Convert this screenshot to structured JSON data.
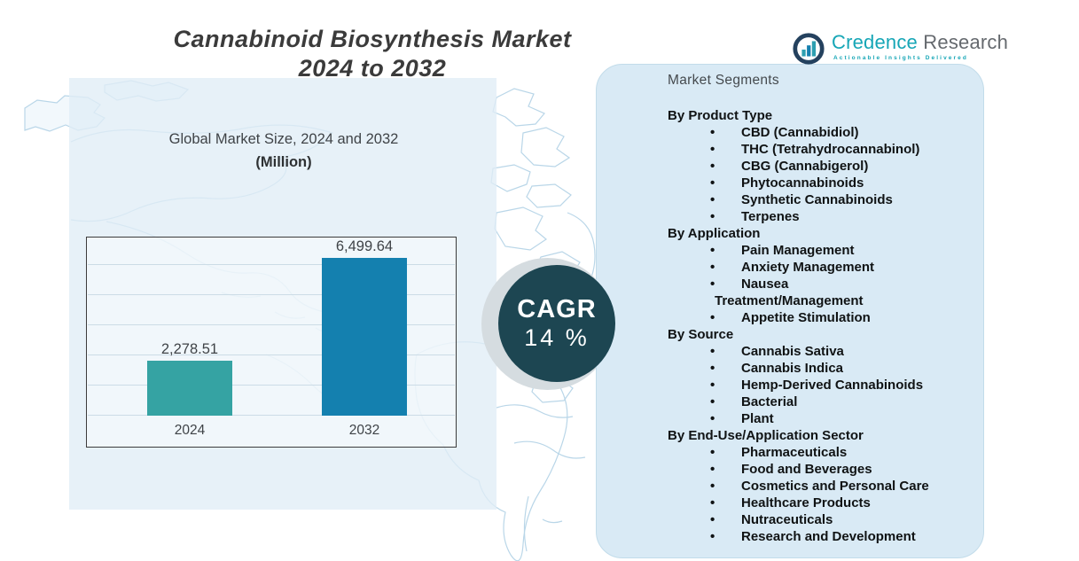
{
  "title": {
    "line1": "Cannabinoid Biosynthesis Market",
    "line2": "2024 to 2032"
  },
  "logo": {
    "brand_primary": "Credence",
    "brand_secondary": " Research",
    "tagline": "Actionable Insights Delivered",
    "icon": "bar-chart-icon",
    "brand_color": "#16a6b6",
    "secondary_color": "#65696e"
  },
  "chart_data": {
    "type": "bar",
    "title": "Global Market Size, 2024 and 2032",
    "subtitle": "(Million)",
    "categories": [
      "2024",
      "2032"
    ],
    "values": [
      2278.51,
      6499.64
    ],
    "value_labels": [
      "2,278.51",
      "6,499.64"
    ],
    "bar_colors": [
      "#35a3a3",
      "#1480af"
    ],
    "xlabel": "",
    "ylabel": "",
    "ylim": [
      0,
      7400
    ],
    "grid": true,
    "gridline_count": 6,
    "legend": "none"
  },
  "cagr": {
    "label": "CAGR",
    "value": "14 %",
    "circle_color": "#1d4652",
    "text_color": "#ffffff"
  },
  "segments_panel": {
    "header": "Market Segments",
    "panel_color": "#d9eaf5",
    "groups": [
      {
        "heading": "By Product Type",
        "items": [
          "CBD (Cannabidiol)",
          "THC (Tetrahydrocannabinol)",
          "CBG (Cannabigerol)",
          "Phytocannabinoids",
          "Synthetic Cannabinoids",
          "Terpenes"
        ]
      },
      {
        "heading": "By Application",
        "items": [
          "Pain Management",
          "Anxiety Management",
          {
            "label": "Nausea Treatment/Management",
            "lines": [
              "Nausea",
              "Treatment/Management"
            ]
          },
          "Appetite Stimulation"
        ]
      },
      {
        "heading": "By Source",
        "items": [
          "Cannabis Sativa",
          "Cannabis Indica",
          "Hemp-Derived Cannabinoids",
          "Bacterial",
          "Plant"
        ]
      },
      {
        "heading": "By End-Use/Application Sector",
        "items": [
          "Pharmaceuticals",
          "Food and Beverages",
          "Cosmetics and Personal Care",
          "Healthcare Products",
          "Nutraceuticals",
          "Research and Development"
        ]
      }
    ]
  }
}
